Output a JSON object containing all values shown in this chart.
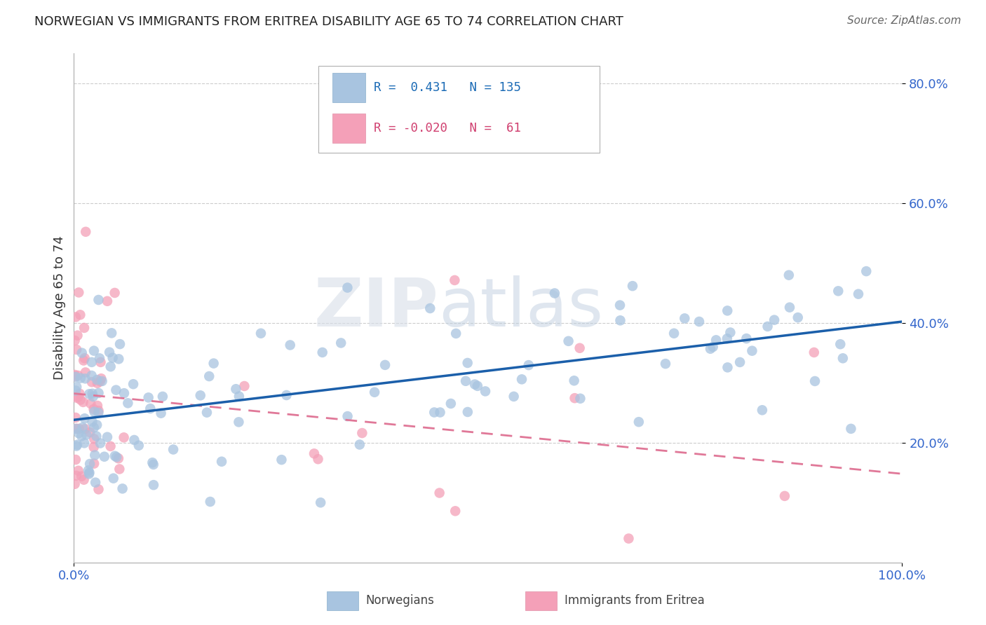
{
  "title": "NORWEGIAN VS IMMIGRANTS FROM ERITREA DISABILITY AGE 65 TO 74 CORRELATION CHART",
  "source": "Source: ZipAtlas.com",
  "ylabel": "Disability Age 65 to 74",
  "xlim": [
    0.0,
    1.0
  ],
  "ylim": [
    0.0,
    0.85
  ],
  "y_ticks": [
    0.2,
    0.4,
    0.6,
    0.8
  ],
  "y_tick_labels": [
    "20.0%",
    "40.0%",
    "60.0%",
    "80.0%"
  ],
  "color_norwegian": "#a8c4e0",
  "color_eritrea": "#f4a0b8",
  "color_line_norwegian": "#1b5faa",
  "color_line_eritrea": "#e07898",
  "watermark_zip": "ZIP",
  "watermark_atlas": "atlas",
  "nor_line_start_y": 0.238,
  "nor_line_end_y": 0.402,
  "eri_line_start_y": 0.282,
  "eri_line_end_y": 0.148
}
